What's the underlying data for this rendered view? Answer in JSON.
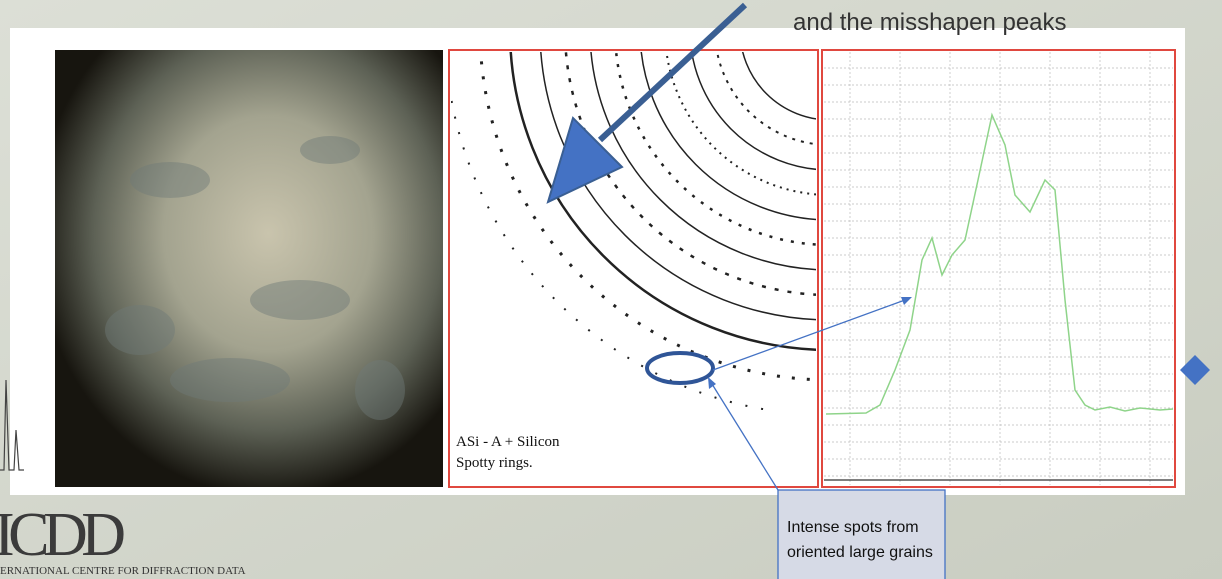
{
  "slide": {
    "heading": "and the misshapen peaks",
    "figure_caption": [
      "ASi - A + Silicon",
      "Spotty rings."
    ],
    "callout": [
      "Intense spots from",
      "oriented large grains"
    ],
    "logo": {
      "mark": "ICDD",
      "name": "ERNATIONAL CENTRE FOR DIFFRACTION DATA"
    }
  }
}
